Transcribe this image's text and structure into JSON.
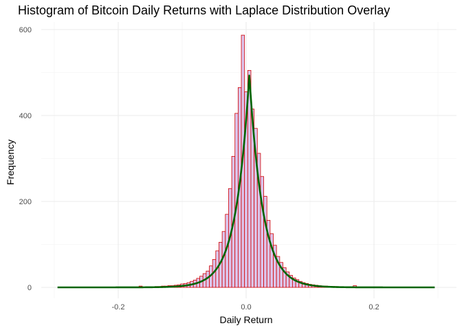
{
  "chart_data": {
    "type": "bar",
    "title": "Histogram of Bitcoin Daily Returns with Laplace Distribution Overlay",
    "xlabel": "Daily Return",
    "ylabel": "Frequency",
    "xlim": [
      -0.3,
      0.3
    ],
    "ylim": [
      0,
      610
    ],
    "x_ticks": [
      -0.2,
      0.0,
      0.2
    ],
    "x_tick_labels": [
      "-0.2",
      "0.0",
      "0.2"
    ],
    "y_ticks": [
      0,
      200,
      400,
      600
    ],
    "y_tick_labels": [
      "0",
      "200",
      "400",
      "600"
    ],
    "grid": true,
    "bin_width": 0.005,
    "bins_x": [
      -0.165,
      -0.16,
      -0.155,
      -0.15,
      -0.145,
      -0.14,
      -0.135,
      -0.13,
      -0.125,
      -0.12,
      -0.115,
      -0.11,
      -0.105,
      -0.1,
      -0.095,
      -0.09,
      -0.085,
      -0.08,
      -0.075,
      -0.07,
      -0.065,
      -0.06,
      -0.055,
      -0.05,
      -0.045,
      -0.04,
      -0.035,
      -0.03,
      -0.025,
      -0.02,
      -0.015,
      -0.01,
      -0.005,
      0.0,
      0.005,
      0.01,
      0.015,
      0.02,
      0.025,
      0.03,
      0.035,
      0.04,
      0.045,
      0.05,
      0.055,
      0.06,
      0.065,
      0.07,
      0.075,
      0.08,
      0.085,
      0.09,
      0.095,
      0.1,
      0.105,
      0.11,
      0.115,
      0.12,
      0.125,
      0.13,
      0.135,
      0.14,
      0.145,
      0.15,
      0.155,
      0.16,
      0.165,
      0.17,
      0.175,
      0.18,
      0.185,
      0.19
    ],
    "bins_count": [
      3,
      1,
      1,
      1,
      1,
      2,
      2,
      3,
      3,
      4,
      4,
      5,
      6,
      8,
      9,
      11,
      14,
      17,
      21,
      26,
      32,
      38,
      50,
      65,
      85,
      105,
      130,
      170,
      230,
      305,
      405,
      465,
      587,
      455,
      505,
      415,
      370,
      312,
      258,
      212,
      156,
      125,
      98,
      72,
      58,
      46,
      36,
      28,
      22,
      18,
      14,
      11,
      9,
      7,
      6,
      5,
      4,
      3,
      3,
      2,
      2,
      2,
      1,
      1,
      1,
      1,
      1,
      4,
      1,
      1,
      1,
      1
    ],
    "fill_color": "#dcc5ec",
    "edge_color": "#d10000",
    "overlay": {
      "type": "line",
      "distribution": "Laplace",
      "location": 0.005,
      "peak": 495,
      "scale_b": 0.021,
      "x_range": [
        -0.295,
        0.295
      ],
      "color": "#006400"
    }
  }
}
